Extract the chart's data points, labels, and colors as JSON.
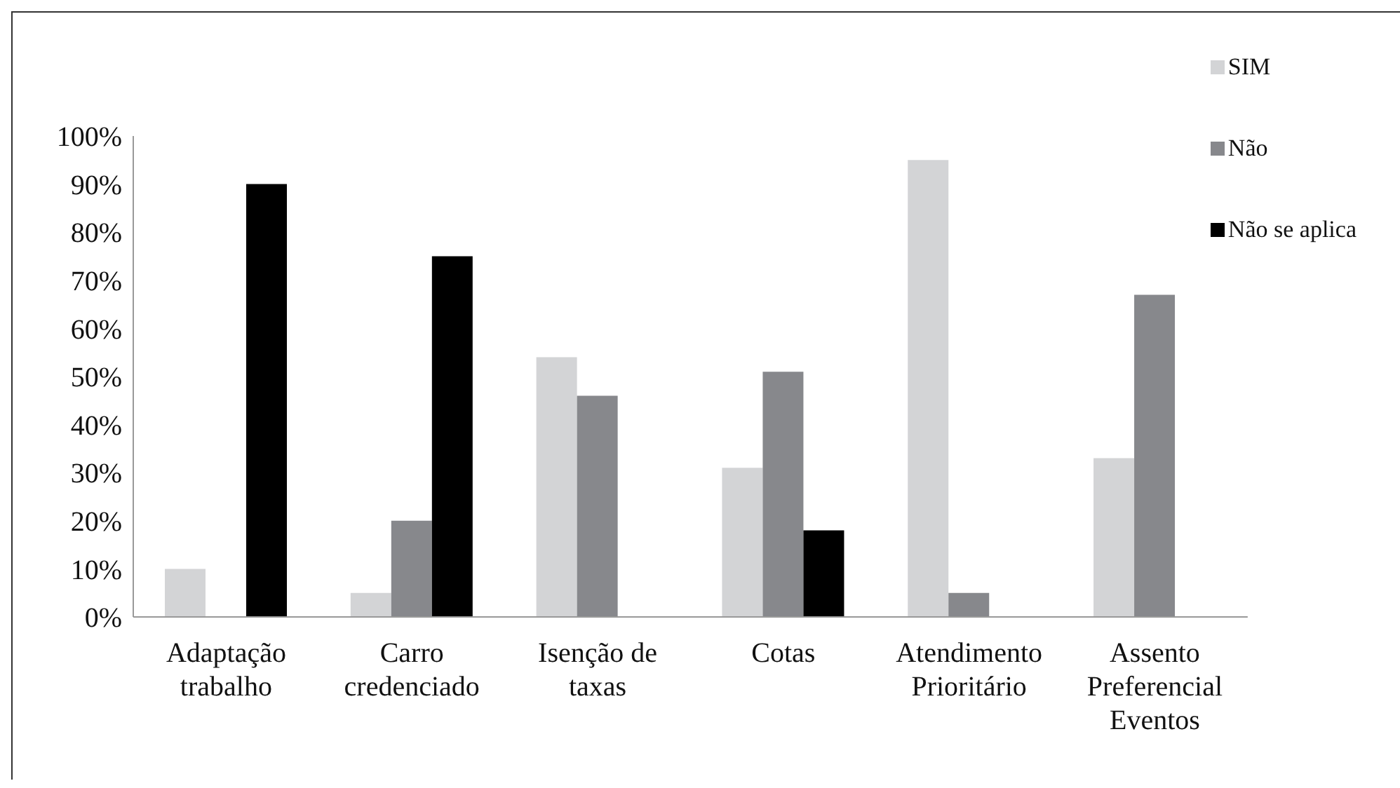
{
  "chart_data": {
    "type": "bar",
    "categories": [
      "Adaptação trabalho",
      "Carro credenciado",
      "Isenção de taxas",
      "Cotas",
      "Atendimento Prioritário",
      "Assento Preferencial Eventos"
    ],
    "series": [
      {
        "name": "SIM",
        "color": "#d3d4d6",
        "values": [
          10,
          5,
          54,
          31,
          95,
          33
        ]
      },
      {
        "name": "Não",
        "color": "#87888c",
        "values": [
          0,
          20,
          46,
          51,
          5,
          67
        ]
      },
      {
        "name": "Não se aplica",
        "color": "#000000",
        "values": [
          90,
          75,
          0,
          18,
          0,
          0
        ]
      }
    ],
    "ylim": [
      0,
      100
    ],
    "yticks": [
      {
        "value": 0,
        "label": "0%"
      },
      {
        "value": 10,
        "label": "10%"
      },
      {
        "value": 20,
        "label": "20%"
      },
      {
        "value": 30,
        "label": "30%"
      },
      {
        "value": 40,
        "label": "40%"
      },
      {
        "value": 50,
        "label": "50%"
      },
      {
        "value": 60,
        "label": "60%"
      },
      {
        "value": 70,
        "label": "70%"
      },
      {
        "value": 80,
        "label": "80%"
      },
      {
        "value": 90,
        "label": "90%"
      },
      {
        "value": 100,
        "label": "100%"
      }
    ],
    "grid": false,
    "legend": "top right"
  }
}
